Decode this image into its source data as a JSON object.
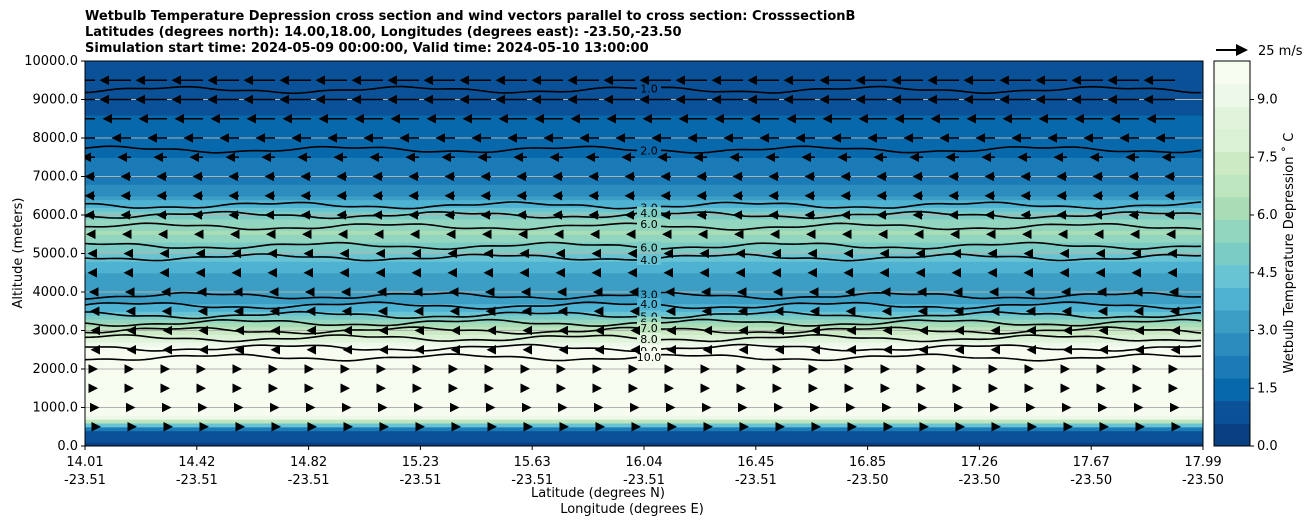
{
  "title": {
    "line1": "Wetbulb Temperature Depression cross section and wind vectors parallel to cross section: CrosssectionB",
    "line2": "Latitudes (degrees north): 14.00,18.00, Longitudes (degrees east): -23.50,-23.50",
    "line3": "Simulation start time: 2024-05-09 00:00:00, Valid time: 2024-05-10 13:00:00"
  },
  "chart_data": {
    "type": "heatmap",
    "ylabel": "Altitude (meters)",
    "xlabel_lat": "Latitude (degrees N)",
    "xlabel_lon": "Longitude (degrees E)",
    "ylim": [
      0,
      10000
    ],
    "y_ticks": [
      "0.0",
      "1000.0",
      "2000.0",
      "3000.0",
      "4000.0",
      "5000.0",
      "6000.0",
      "7000.0",
      "8000.0",
      "9000.0",
      "10000.0"
    ],
    "x_ticks_lat": [
      "14.01",
      "14.42",
      "14.82",
      "15.23",
      "15.63",
      "16.04",
      "16.45",
      "16.85",
      "17.26",
      "17.67",
      "17.99"
    ],
    "x_ticks_lon": [
      "-23.51",
      "-23.51",
      "-23.51",
      "-23.51",
      "-23.51",
      "-23.51",
      "-23.51",
      "-23.50",
      "-23.50",
      "-23.50",
      "-23.50"
    ],
    "grid": "horizontal",
    "colorbar": {
      "label": "Wetbulb Temperature Depression ˚ C",
      "range": [
        0,
        10
      ],
      "ticks": [
        "0.0",
        "1.5",
        "3.0",
        "4.5",
        "6.0",
        "7.5",
        "9.0"
      ],
      "colors": [
        "#084081",
        "#0a5197",
        "#0868ac",
        "#1a7bb7",
        "#2b8cbe",
        "#3b9ec5",
        "#4eb3d3",
        "#68c3d3",
        "#7bccc4",
        "#92d6c0",
        "#a8ddb5",
        "#bde5be",
        "#ccebc5",
        "#dbf1d5",
        "#e0f3db",
        "#eef8ea",
        "#f7fcf0"
      ]
    },
    "wind_key": "25 m/s",
    "profile": [
      {
        "alt": 0,
        "depression": 0.5
      },
      {
        "alt": 400,
        "depression": 1.0
      },
      {
        "alt": 800,
        "depression": 10.0
      },
      {
        "alt": 2000,
        "depression": 10.0
      },
      {
        "alt": 2400,
        "depression": 10.0
      },
      {
        "alt": 2700,
        "depression": 9.0
      },
      {
        "alt": 3000,
        "depression": 7.0
      },
      {
        "alt": 3300,
        "depression": 5.0
      },
      {
        "alt": 3700,
        "depression": 3.5
      },
      {
        "alt": 4200,
        "depression": 3.0
      },
      {
        "alt": 4800,
        "depression": 4.0
      },
      {
        "alt": 5500,
        "depression": 6.0
      },
      {
        "alt": 6000,
        "depression": 5.0
      },
      {
        "alt": 6500,
        "depression": 3.0
      },
      {
        "alt": 7000,
        "depression": 2.0
      },
      {
        "alt": 8000,
        "depression": 1.5
      },
      {
        "alt": 9000,
        "depression": 1.0
      },
      {
        "alt": 10000,
        "depression": 0.6
      }
    ],
    "contour_levels": [
      {
        "alt": 9250,
        "label": "1.0"
      },
      {
        "alt": 7700,
        "label": "2.0"
      },
      {
        "alt": 6250,
        "label": "3.0"
      },
      {
        "alt": 6000,
        "label": "4.0"
      },
      {
        "alt": 5700,
        "label": "6.0"
      },
      {
        "alt": 5200,
        "label": "6.0"
      },
      {
        "alt": 4900,
        "label": "4.0"
      },
      {
        "alt": 3900,
        "label": "3.0"
      },
      {
        "alt": 3650,
        "label": "4.0"
      },
      {
        "alt": 3400,
        "label": "5.0"
      },
      {
        "alt": 3200,
        "label": "6.0"
      },
      {
        "alt": 3000,
        "label": "7.0"
      },
      {
        "alt": 2800,
        "label": "8.0"
      },
      {
        "alt": 2550,
        "label": "9.0"
      },
      {
        "alt": 2300,
        "label": "10.0"
      }
    ],
    "wind_rows": [
      {
        "alt": 9500,
        "u": -1.0
      },
      {
        "alt": 9000,
        "u": -1.0
      },
      {
        "alt": 8500,
        "u": -0.9
      },
      {
        "alt": 8000,
        "u": -0.6
      },
      {
        "alt": 7500,
        "u": -0.4
      },
      {
        "alt": 7000,
        "u": -0.3
      },
      {
        "alt": 6500,
        "u": -0.3
      },
      {
        "alt": 6000,
        "u": -0.3
      },
      {
        "alt": 5500,
        "u": -0.25
      },
      {
        "alt": 5000,
        "u": -0.2
      },
      {
        "alt": 4500,
        "u": -0.2
      },
      {
        "alt": 4000,
        "u": -0.15
      },
      {
        "alt": 3500,
        "u": -0.12
      },
      {
        "alt": 3000,
        "u": -0.1
      },
      {
        "alt": 2500,
        "u": -0.1
      },
      {
        "alt": 2000,
        "u": 0.05
      },
      {
        "alt": 1500,
        "u": 0.05
      },
      {
        "alt": 1000,
        "u": 0.1
      },
      {
        "alt": 500,
        "u": 0.15
      }
    ]
  }
}
